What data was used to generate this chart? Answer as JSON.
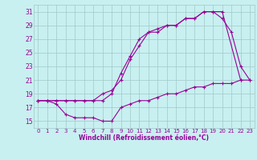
{
  "xlabel": "Windchill (Refroidissement éolien,°C)",
  "bg_color": "#c8f0f0",
  "grid_color": "#a0c8c8",
  "line_color": "#990099",
  "xlim": [
    -0.5,
    23.5
  ],
  "ylim": [
    14.0,
    32.0
  ],
  "yticks": [
    15,
    17,
    19,
    21,
    23,
    25,
    27,
    29,
    31
  ],
  "xticks": [
    0,
    1,
    2,
    3,
    4,
    5,
    6,
    7,
    8,
    9,
    10,
    11,
    12,
    13,
    14,
    15,
    16,
    17,
    18,
    19,
    20,
    21,
    22,
    23
  ],
  "line1_x": [
    0,
    1,
    2,
    3,
    4,
    5,
    6,
    7,
    8,
    9,
    10,
    11,
    12,
    13,
    14,
    15,
    16,
    17,
    18,
    19,
    20,
    22
  ],
  "line1_y": [
    18,
    18,
    18,
    18,
    18,
    18,
    18,
    19,
    19.5,
    21,
    24,
    26,
    28,
    28,
    29,
    29,
    30,
    30,
    31,
    31,
    31,
    21
  ],
  "line2_x": [
    0,
    1,
    2,
    3,
    4,
    5,
    6,
    7,
    8,
    9,
    10,
    11,
    12,
    13,
    14,
    15,
    16,
    17,
    18,
    19,
    20,
    21,
    22,
    23
  ],
  "line2_y": [
    18,
    18,
    18,
    18,
    18,
    18,
    18,
    18,
    19,
    22,
    24.5,
    27,
    28,
    28.5,
    29,
    29,
    30,
    30,
    31,
    31,
    30,
    28,
    23,
    21
  ],
  "line3_x": [
    0,
    1,
    2,
    3,
    4,
    5,
    6,
    7,
    8,
    9,
    10,
    11,
    12,
    13,
    14,
    15,
    16,
    17,
    18,
    19,
    20,
    21,
    22,
    23
  ],
  "line3_y": [
    18,
    18,
    17.5,
    16,
    15.5,
    15.5,
    15.5,
    15,
    15,
    17,
    17.5,
    18,
    18,
    18.5,
    19,
    19,
    19.5,
    20,
    20,
    20.5,
    20.5,
    20.5,
    21,
    21
  ]
}
